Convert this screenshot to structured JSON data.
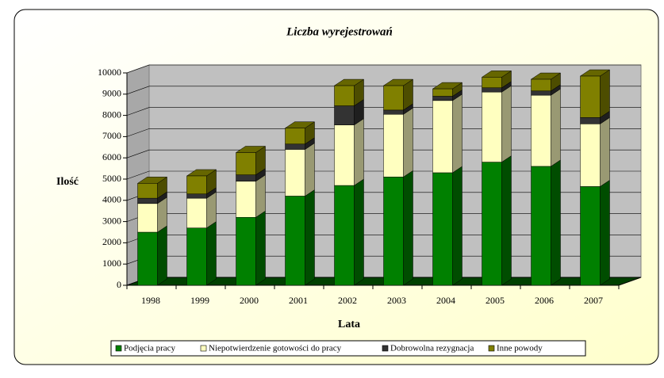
{
  "chart_data": {
    "type": "bar3d_stacked",
    "title": "Liczba wyrejestrowań",
    "x_label": "Lata",
    "y_label": "Ilość",
    "categories": [
      "1998",
      "1999",
      "2000",
      "2001",
      "2002",
      "2003",
      "2004",
      "2005",
      "2006",
      "2007"
    ],
    "series": [
      {
        "name": "Podjęcia pracy",
        "color": "#008000",
        "values": [
          2500,
          2700,
          3200,
          4200,
          4700,
          5100,
          5300,
          5800,
          5600,
          4650
        ]
      },
      {
        "name": "Niepotwierdzenie gotowości do pracy",
        "color": "#ffffc0",
        "values": [
          1350,
          1400,
          1700,
          2200,
          2850,
          2950,
          3400,
          3300,
          3350,
          2950
        ]
      },
      {
        "name": "Dobrowolna rezygnacja",
        "color": "#333333",
        "values": [
          250,
          200,
          300,
          250,
          900,
          200,
          200,
          200,
          200,
          300
        ]
      },
      {
        "name": "Inne powody",
        "color": "#808000",
        "values": [
          700,
          850,
          1050,
          750,
          950,
          1150,
          350,
          500,
          550,
          1950
        ]
      }
    ],
    "ylim": [
      0,
      10000
    ],
    "yticks": [
      0,
      1000,
      2000,
      3000,
      4000,
      5000,
      6000,
      7000,
      8000,
      9000,
      10000
    ],
    "grid": true,
    "legend": "bottom"
  }
}
